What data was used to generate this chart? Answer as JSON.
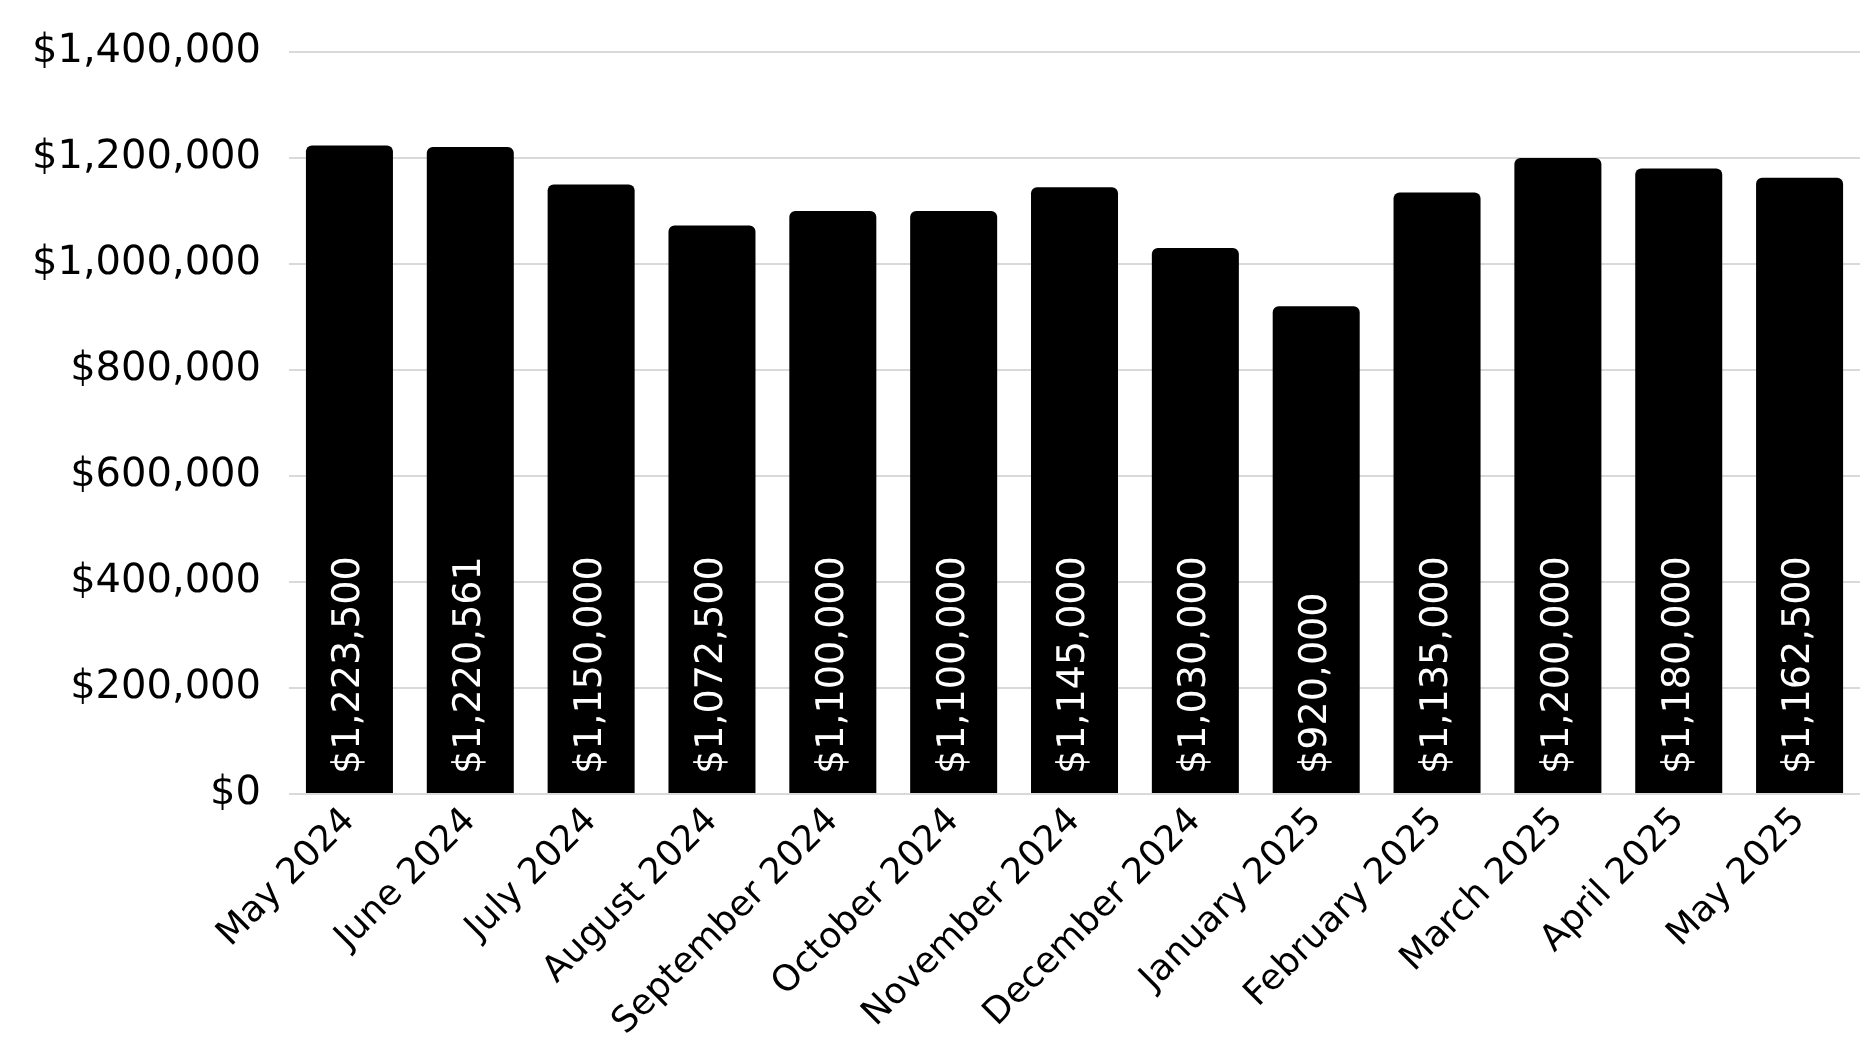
{
  "chart_data": {
    "type": "bar",
    "categories": [
      "May 2024",
      "June 2024",
      "July 2024",
      "August 2024",
      "September 2024",
      "October 2024",
      "November 2024",
      "December 2024",
      "January 2025",
      "February 2025",
      "March 2025",
      "April 2025",
      "May 2025"
    ],
    "values": [
      1223500,
      1220561,
      1150000,
      1072500,
      1100000,
      1100000,
      1145000,
      1030000,
      920000,
      1135000,
      1200000,
      1180000,
      1162500
    ],
    "color": "#000000",
    "ylim": [
      0,
      1400000
    ],
    "yticks": [
      {
        "value": 0,
        "label": "$0"
      },
      {
        "value": 200000,
        "label": "$200,000"
      },
      {
        "value": 400000,
        "label": "$400,000"
      },
      {
        "value": 600000,
        "label": "$600,000"
      },
      {
        "value": 800000,
        "label": "$800,000"
      },
      {
        "value": 1000000,
        "label": "$1,000,000"
      },
      {
        "value": 1200000,
        "label": "$1,200,000"
      },
      {
        "value": 1400000,
        "label": "$1,400,000"
      }
    ],
    "value_labels": [
      "$1,223,500",
      "$1,220,561",
      "$1,150,000",
      "$1,072,500",
      "$1,100,000",
      "$1,100,000",
      "$1,145,000",
      "$1,030,000",
      "$920,000",
      "$1,135,000",
      "$1,200,000",
      "$1,180,000",
      "$1,162,500"
    ],
    "grid": "y"
  }
}
